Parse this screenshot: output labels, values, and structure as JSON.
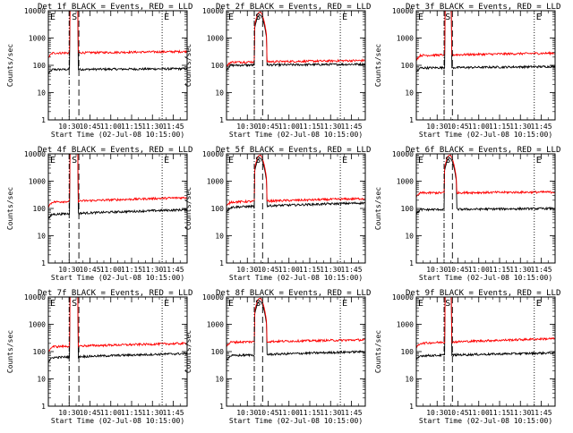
{
  "common": {
    "ylabel": "Counts/sec",
    "xlabel": "Start Time (02-Jul-08 10:15:00)",
    "yticks": [
      "1",
      "10",
      "100",
      "1000",
      "10000"
    ],
    "xticks": [
      "10:30",
      "10:45",
      "11:00",
      "11:15",
      "11:30",
      "11:45"
    ],
    "marker_labels": {
      "start": "E",
      "s": "S",
      "end": "E"
    },
    "colors": {
      "events": "#000000",
      "lld": "#ff0000",
      "axes": "#000000"
    }
  },
  "chart_data": [
    {
      "type": "line",
      "title": "Det 1f BLACK = Events, RED = LLD",
      "x_range_min": [
        0,
        100
      ],
      "ylim": [
        1,
        10000
      ],
      "log_y": true,
      "markers_min": {
        "start": 15,
        "s": 22,
        "end": 82
      },
      "flare": false,
      "series": [
        {
          "name": "Events",
          "base": 70,
          "end": 75,
          "peak": null
        },
        {
          "name": "LLD",
          "base": 280,
          "end": 320,
          "peak": null
        }
      ]
    },
    {
      "type": "line",
      "title": "Det 2f BLACK = Events, RED = LLD",
      "x_range_min": [
        0,
        100
      ],
      "ylim": [
        1,
        10000
      ],
      "log_y": true,
      "markers_min": {
        "start": 20,
        "s": 26,
        "end": 82
      },
      "flare": true,
      "series": [
        {
          "name": "Events",
          "base": 100,
          "end": 110,
          "peak": 7000
        },
        {
          "name": "LLD",
          "base": 130,
          "end": 150,
          "peak": 9000
        }
      ]
    },
    {
      "type": "line",
      "title": "Det 3f BLACK = Events, RED = LLD",
      "x_range_min": [
        0,
        100
      ],
      "ylim": [
        1,
        10000
      ],
      "log_y": true,
      "markers_min": {
        "start": 20,
        "s": 26,
        "end": 85
      },
      "flare": false,
      "series": [
        {
          "name": "Events",
          "base": 80,
          "end": 90,
          "peak": null
        },
        {
          "name": "LLD",
          "base": 230,
          "end": 280,
          "peak": null
        }
      ]
    },
    {
      "type": "line",
      "title": "Det 4f BLACK = Events, RED = LLD",
      "x_range_min": [
        0,
        100
      ],
      "ylim": [
        1,
        10000
      ],
      "log_y": true,
      "markers_min": {
        "start": 15,
        "s": 22,
        "end": 82
      },
      "flare": false,
      "series": [
        {
          "name": "Events",
          "base": 60,
          "end": 90,
          "peak": null
        },
        {
          "name": "LLD",
          "base": 170,
          "end": 250,
          "peak": null
        }
      ]
    },
    {
      "type": "line",
      "title": "Det 5f BLACK = Events, RED = LLD",
      "x_range_min": [
        0,
        100
      ],
      "ylim": [
        1,
        10000
      ],
      "log_y": true,
      "markers_min": {
        "start": 20,
        "s": 26,
        "end": 82
      },
      "flare": true,
      "series": [
        {
          "name": "Events",
          "base": 110,
          "end": 160,
          "peak": 7000
        },
        {
          "name": "LLD",
          "base": 170,
          "end": 230,
          "peak": 9000
        }
      ]
    },
    {
      "type": "line",
      "title": "Det 6f BLACK = Events, RED = LLD",
      "x_range_min": [
        0,
        100
      ],
      "ylim": [
        1,
        10000
      ],
      "log_y": true,
      "markers_min": {
        "start": 20,
        "s": 26,
        "end": 85
      },
      "flare": true,
      "series": [
        {
          "name": "Events",
          "base": 90,
          "end": 100,
          "peak": 7000
        },
        {
          "name": "LLD",
          "base": 370,
          "end": 400,
          "peak": 9000
        }
      ]
    },
    {
      "type": "line",
      "title": "Det 7f BLACK = Events, RED = LLD",
      "x_range_min": [
        0,
        100
      ],
      "ylim": [
        1,
        10000
      ],
      "log_y": true,
      "markers_min": {
        "start": 15,
        "s": 22,
        "end": 82
      },
      "flare": false,
      "series": [
        {
          "name": "Events",
          "base": 60,
          "end": 85,
          "peak": null
        },
        {
          "name": "LLD",
          "base": 150,
          "end": 200,
          "peak": null
        }
      ]
    },
    {
      "type": "line",
      "title": "Det 8f BLACK = Events, RED = LLD",
      "x_range_min": [
        0,
        100
      ],
      "ylim": [
        1,
        10000
      ],
      "log_y": true,
      "markers_min": {
        "start": 20,
        "s": 26,
        "end": 82
      },
      "flare": true,
      "series": [
        {
          "name": "Events",
          "base": 70,
          "end": 100,
          "peak": 7000
        },
        {
          "name": "LLD",
          "base": 220,
          "end": 270,
          "peak": 9000
        }
      ]
    },
    {
      "type": "line",
      "title": "Det 9f BLACK = Events, RED = LLD",
      "x_range_min": [
        0,
        100
      ],
      "ylim": [
        1,
        10000
      ],
      "log_y": true,
      "markers_min": {
        "start": 20,
        "s": 26,
        "end": 85
      },
      "flare": false,
      "series": [
        {
          "name": "Events",
          "base": 70,
          "end": 90,
          "peak": null
        },
        {
          "name": "LLD",
          "base": 200,
          "end": 300,
          "peak": null
        }
      ]
    }
  ]
}
